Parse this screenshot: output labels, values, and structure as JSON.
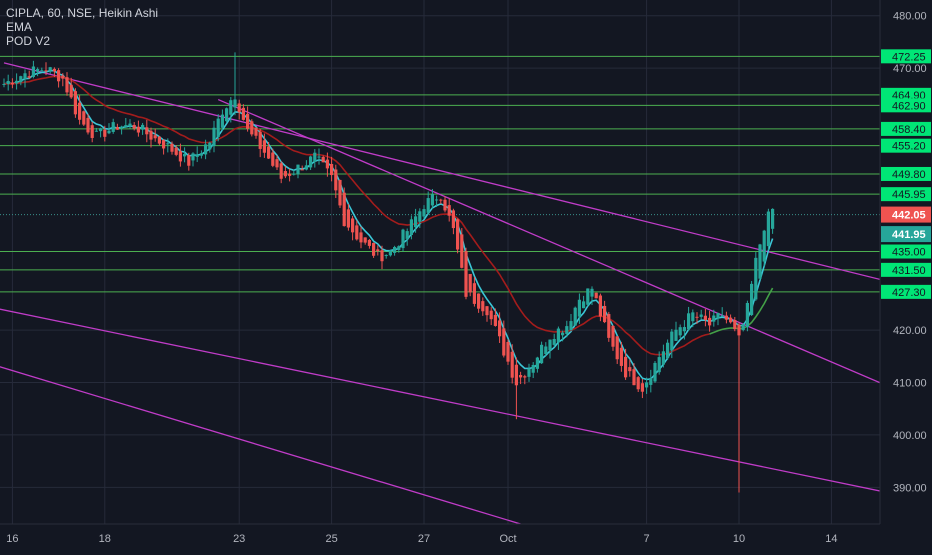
{
  "legend": {
    "title": "CIPLA, 60, NSE, Heikin Ashi",
    "line2": "EMA",
    "line3": "POD V2"
  },
  "colors": {
    "background": "#131722",
    "grid": "#262b3a",
    "axis_text": "#b2b5be",
    "level_line": "#4caf50",
    "level_label_bg": "#00e676",
    "trend_line": "#c03cc8",
    "candle_up": "#26a69a",
    "candle_down": "#ef5350",
    "ema_fast": "#3bc6d6",
    "ema_slow": "#a31c1c",
    "ema_slow_green": "#43a047",
    "price_label": "#ef5350",
    "price_label2": "#26a69a"
  },
  "chart_data": {
    "type": "candlestick",
    "y_ticks": [
      "480.00",
      "470.00",
      "420.00",
      "410.00",
      "400.00",
      "390.00"
    ],
    "ylim": [
      383,
      483
    ],
    "x_labels": [
      {
        "label": "16",
        "bar": 2
      },
      {
        "label": "18",
        "bar": 24
      },
      {
        "label": "23",
        "bar": 56
      },
      {
        "label": "25",
        "bar": 78
      },
      {
        "label": "27",
        "bar": 100
      },
      {
        "label": "Oct",
        "bar": 120
      },
      {
        "label": "7",
        "bar": 153
      },
      {
        "label": "10",
        "bar": 175
      },
      {
        "label": "14",
        "bar": 197
      }
    ],
    "levels": [
      {
        "label": "472.25",
        "value": 472.25
      },
      {
        "label": "464.90",
        "value": 464.9
      },
      {
        "label": "462.90",
        "value": 462.9
      },
      {
        "label": "458.40",
        "value": 458.4
      },
      {
        "label": "455.20",
        "value": 455.2
      },
      {
        "label": "449.80",
        "value": 449.8
      },
      {
        "label": "445.95",
        "value": 445.95
      },
      {
        "label": "435.00",
        "value": 435.0
      },
      {
        "label": "431.50",
        "value": 431.5
      },
      {
        "label": "427.30",
        "value": 427.3
      }
    ],
    "current_price": {
      "label": "442.05",
      "value": 442.05
    },
    "current_price2": {
      "label": "441.95",
      "value": 441.95
    },
    "trendlines": [
      {
        "start": {
          "bar": 0,
          "price": 471
        },
        "end": {
          "bar": 214,
          "price": 428.6
        }
      },
      {
        "start": {
          "bar": 51,
          "price": 464
        },
        "end": {
          "bar": 214,
          "price": 408.1
        }
      },
      {
        "start": {
          "bar": -1,
          "price": 424
        },
        "end": {
          "bar": 214,
          "price": 388.4
        }
      },
      {
        "start": {
          "bar": -1,
          "price": 413
        },
        "end": {
          "bar": 123,
          "price": 383
        }
      }
    ],
    "price_path": [
      {
        "bar": 0,
        "price": 467
      },
      {
        "bar": 5,
        "price": 469
      },
      {
        "bar": 10,
        "price": 470
      },
      {
        "bar": 14,
        "price": 468
      },
      {
        "bar": 18,
        "price": 460
      },
      {
        "bar": 22,
        "price": 457
      },
      {
        "bar": 27,
        "price": 459
      },
      {
        "bar": 31,
        "price": 459
      },
      {
        "bar": 35,
        "price": 457
      },
      {
        "bar": 39,
        "price": 455
      },
      {
        "bar": 44,
        "price": 452
      },
      {
        "bar": 49,
        "price": 456
      },
      {
        "bar": 52,
        "price": 462
      },
      {
        "bar": 55,
        "price": 465
      },
      {
        "bar": 58,
        "price": 458
      },
      {
        "bar": 62,
        "price": 454
      },
      {
        "bar": 66,
        "price": 449
      },
      {
        "bar": 70,
        "price": 451
      },
      {
        "bar": 74,
        "price": 453
      },
      {
        "bar": 78,
        "price": 449
      },
      {
        "bar": 81,
        "price": 441
      },
      {
        "bar": 85,
        "price": 437
      },
      {
        "bar": 89,
        "price": 434
      },
      {
        "bar": 92,
        "price": 435
      },
      {
        "bar": 96,
        "price": 439
      },
      {
        "bar": 100,
        "price": 444
      },
      {
        "bar": 104,
        "price": 446
      },
      {
        "bar": 107,
        "price": 439
      },
      {
        "bar": 110,
        "price": 427
      },
      {
        "bar": 115,
        "price": 424
      },
      {
        "bar": 119,
        "price": 416
      },
      {
        "bar": 122,
        "price": 410
      },
      {
        "bar": 126,
        "price": 414
      },
      {
        "bar": 130,
        "price": 419
      },
      {
        "bar": 134,
        "price": 421
      },
      {
        "bar": 137,
        "price": 426
      },
      {
        "bar": 140,
        "price": 428
      },
      {
        "bar": 144,
        "price": 418
      },
      {
        "bar": 148,
        "price": 412
      },
      {
        "bar": 152,
        "price": 409
      },
      {
        "bar": 156,
        "price": 415
      },
      {
        "bar": 160,
        "price": 420
      },
      {
        "bar": 164,
        "price": 423
      },
      {
        "bar": 168,
        "price": 421
      },
      {
        "bar": 171,
        "price": 423
      },
      {
        "bar": 173,
        "price": 421
      },
      {
        "bar": 175,
        "price": 418
      },
      {
        "bar": 177,
        "price": 424
      },
      {
        "bar": 179,
        "price": 433
      },
      {
        "bar": 181,
        "price": 440
      },
      {
        "bar": 183,
        "price": 443
      }
    ]
  }
}
